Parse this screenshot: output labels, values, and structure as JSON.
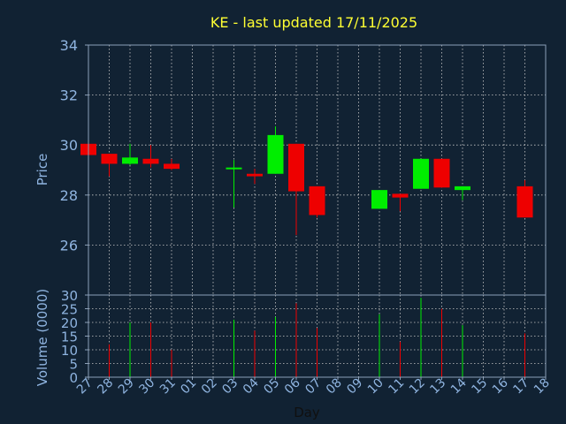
{
  "title": "KE - last updated 17/11/2025",
  "colors": {
    "background": "#112233",
    "up": "#00ee00",
    "down": "#ee0000",
    "title": "#ffff33",
    "labels": "#8fb4e0"
  },
  "chart_data": [
    {
      "type": "candlestick",
      "ylabel": "Price",
      "ylim": [
        24,
        34
      ],
      "yticks": [
        26,
        28,
        30,
        32,
        34
      ],
      "grid": true,
      "x": [
        "27",
        "28",
        "29",
        "30",
        "31",
        "01",
        "02",
        "03",
        "04",
        "05",
        "06",
        "07",
        "08",
        "09",
        "10",
        "11",
        "12",
        "13",
        "14",
        "15",
        "16",
        "17",
        "18"
      ],
      "candles": [
        {
          "day": "27",
          "open": 30.05,
          "close": 29.6,
          "high": 30.05,
          "low": 29.6
        },
        {
          "day": "28",
          "open": 29.65,
          "close": 29.25,
          "high": 29.65,
          "low": 28.75
        },
        {
          "day": "29",
          "open": 29.25,
          "close": 29.5,
          "high": 30.05,
          "low": 29.2
        },
        {
          "day": "30",
          "open": 29.45,
          "close": 29.25,
          "high": 30.0,
          "low": 29.1
        },
        {
          "day": "31",
          "open": 29.25,
          "close": 29.05,
          "high": 29.45,
          "low": 29.0
        },
        {
          "day": "03",
          "open": 29.05,
          "close": 29.1,
          "high": 29.4,
          "low": 27.5
        },
        {
          "day": "04",
          "open": 28.85,
          "close": 28.75,
          "high": 29.05,
          "low": 28.45
        },
        {
          "day": "05",
          "open": 28.85,
          "close": 30.4,
          "high": 30.75,
          "low": 28.85
        },
        {
          "day": "06",
          "open": 30.05,
          "close": 28.15,
          "high": 30.05,
          "low": 26.4
        },
        {
          "day": "07",
          "open": 28.35,
          "close": 27.2,
          "high": 28.35,
          "low": 27.1
        },
        {
          "day": "10",
          "open": 27.45,
          "close": 28.2,
          "high": 28.2,
          "low": 27.45
        },
        {
          "day": "11",
          "open": 28.05,
          "close": 27.9,
          "high": 28.05,
          "low": 27.35
        },
        {
          "day": "12",
          "open": 28.25,
          "close": 29.45,
          "high": 29.45,
          "low": 28.25
        },
        {
          "day": "13",
          "open": 29.45,
          "close": 28.3,
          "high": 29.45,
          "low": 28.3
        },
        {
          "day": "14",
          "open": 28.2,
          "close": 28.35,
          "high": 28.35,
          "low": 27.8
        },
        {
          "day": "17",
          "open": 28.35,
          "close": 27.1,
          "high": 28.6,
          "low": 27.1
        }
      ]
    },
    {
      "type": "bar",
      "ylabel": "Volume (0000)",
      "xlabel": "Day",
      "ylim": [
        0,
        30
      ],
      "yticks": [
        0,
        5,
        10,
        15,
        20,
        25,
        30
      ],
      "grid": true,
      "bars": [
        {
          "day": "28",
          "value": 12,
          "direction": "down"
        },
        {
          "day": "29",
          "value": 20,
          "direction": "up"
        },
        {
          "day": "30",
          "value": 20,
          "direction": "down"
        },
        {
          "day": "31",
          "value": 10,
          "direction": "down"
        },
        {
          "day": "03",
          "value": 21,
          "direction": "up"
        },
        {
          "day": "04",
          "value": 17,
          "direction": "down"
        },
        {
          "day": "05",
          "value": 22,
          "direction": "up"
        },
        {
          "day": "06",
          "value": 27,
          "direction": "down"
        },
        {
          "day": "07",
          "value": 18,
          "direction": "down"
        },
        {
          "day": "10",
          "value": 23,
          "direction": "up"
        },
        {
          "day": "11",
          "value": 13,
          "direction": "down"
        },
        {
          "day": "12",
          "value": 29,
          "direction": "up"
        },
        {
          "day": "13",
          "value": 25,
          "direction": "down"
        },
        {
          "day": "14",
          "value": 19,
          "direction": "up"
        },
        {
          "day": "17",
          "value": 16,
          "direction": "down"
        }
      ]
    }
  ]
}
